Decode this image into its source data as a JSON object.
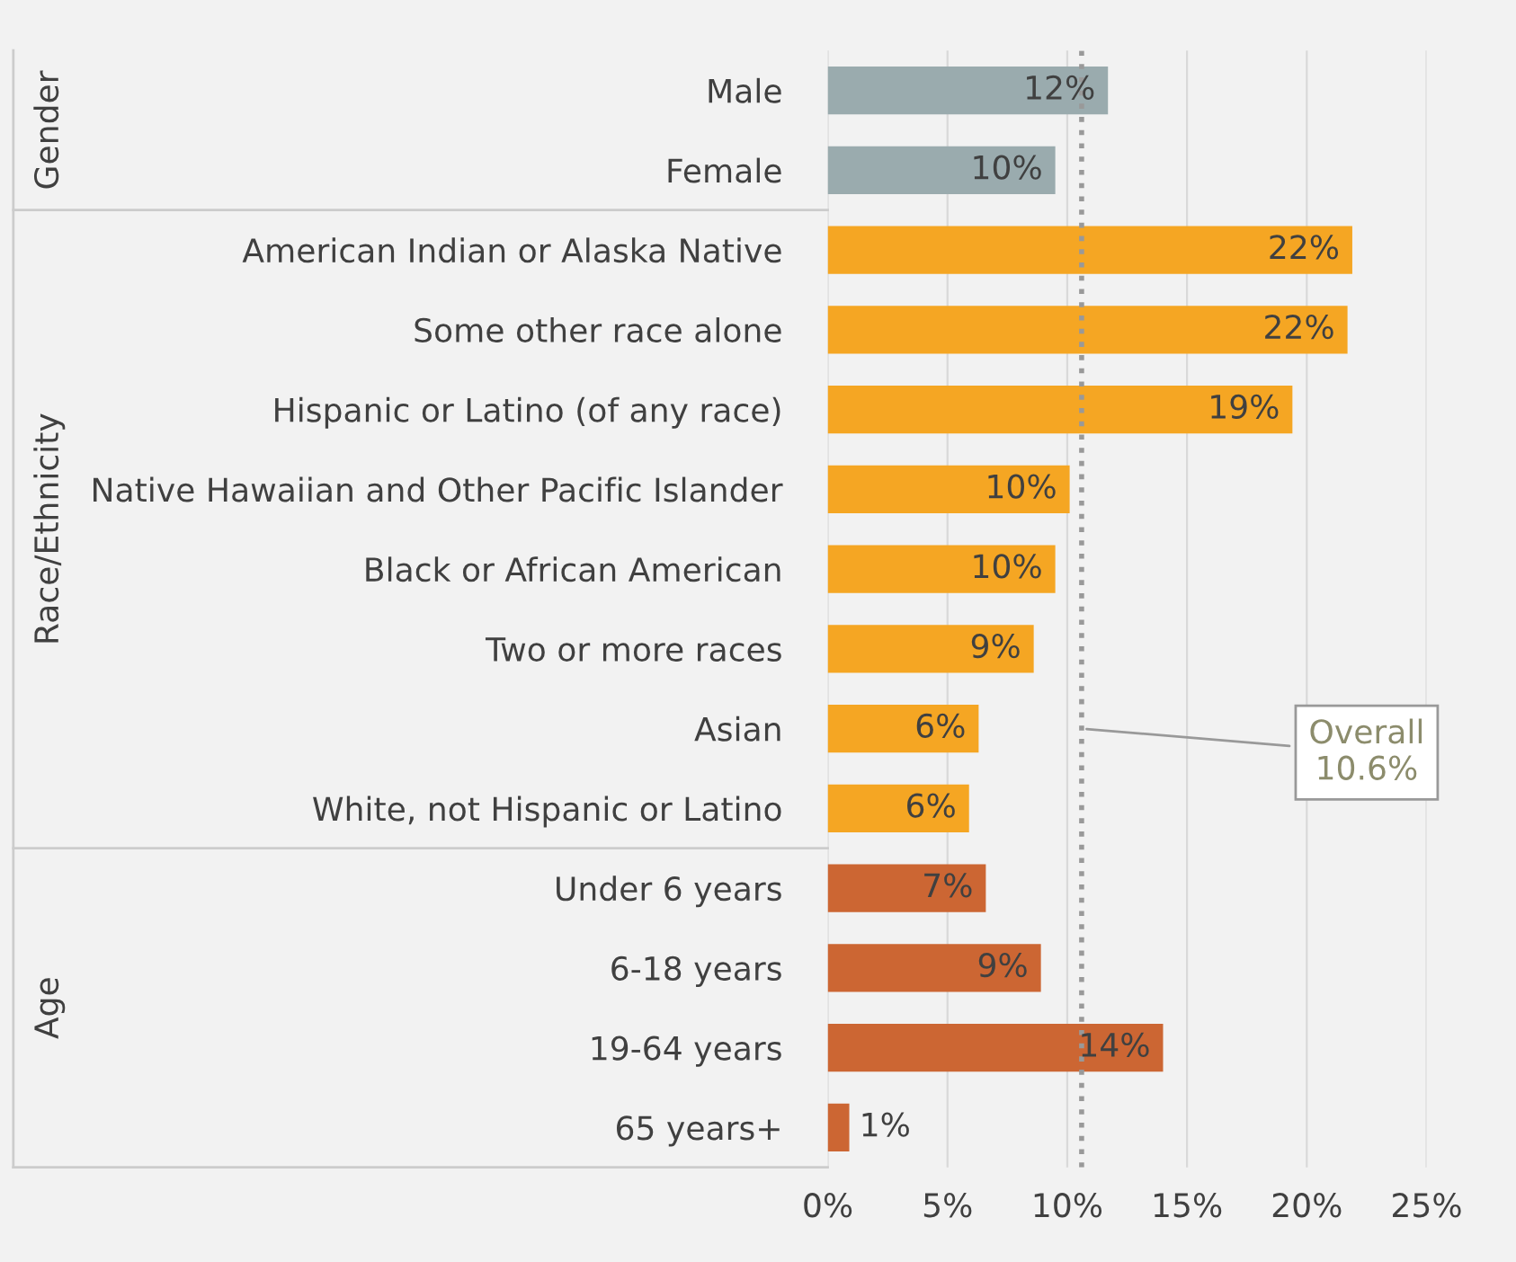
{
  "chart_data": {
    "type": "bar",
    "orientation": "horizontal",
    "categories": [
      "Male",
      "Female",
      "American Indian or Alaska Native",
      "Some other race alone",
      "Hispanic or Latino (of any race)",
      "Native Hawaiian and Other Pacific Islander",
      "Black or African American",
      "Two or more races",
      "Asian",
      "White, not Hispanic or Latino",
      "Under 6 years",
      "6-18 years",
      "19-64 years",
      "65 years+"
    ],
    "values": [
      11.7,
      9.5,
      21.9,
      21.7,
      19.4,
      10.1,
      9.5,
      8.6,
      6.3,
      5.9,
      6.6,
      8.9,
      14.0,
      0.9
    ],
    "value_labels": [
      "12%",
      "10%",
      "22%",
      "22%",
      "19%",
      "10%",
      "10%",
      "9%",
      "6%",
      "6%",
      "7%",
      "9%",
      "14%",
      "1%"
    ],
    "colors": [
      "#9aabae",
      "#9aabae",
      "#f5a623",
      "#f5a623",
      "#f5a623",
      "#f5a623",
      "#f5a623",
      "#f5a623",
      "#f5a623",
      "#f5a623",
      "#cc6633",
      "#cc6633",
      "#cc6633",
      "#cc6633"
    ],
    "xlim": [
      0,
      25
    ],
    "xticks": [
      {
        "value": 0,
        "label": "0%"
      },
      {
        "value": 5,
        "label": "5%"
      },
      {
        "value": 10,
        "label": "10%"
      },
      {
        "value": 15,
        "label": "15%"
      },
      {
        "value": 20,
        "label": "20%"
      },
      {
        "value": 25,
        "label": "25%"
      }
    ],
    "grid": "x",
    "ref_lines": [
      {
        "axis": "x",
        "value": 10.6,
        "label": "Overall\n10.6%",
        "color": "#999999",
        "line_style": "dotted"
      }
    ],
    "annotations": [
      "Gender",
      "Race/Ethnicity",
      "Age"
    ]
  }
}
